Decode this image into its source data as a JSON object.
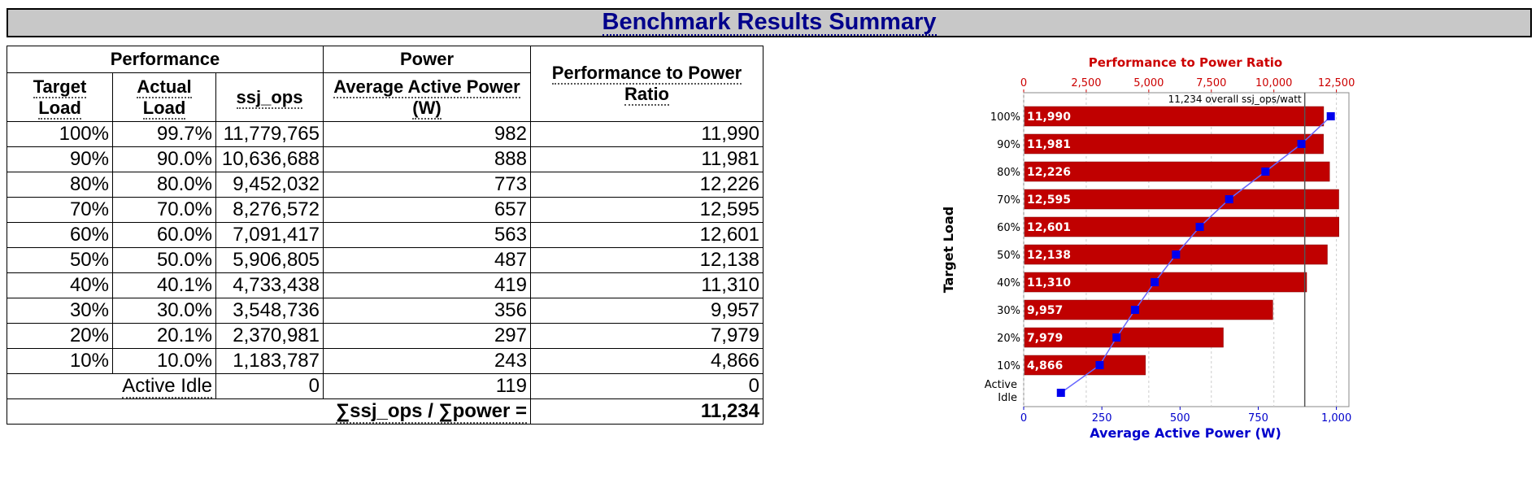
{
  "page_title": "Benchmark Results Summary",
  "table": {
    "group_headers": {
      "performance": "Performance",
      "power": "Power",
      "ratio": "Performance to Power Ratio"
    },
    "col_headers": {
      "target_load": "Target Load",
      "actual_load": "Actual Load",
      "ssj_ops": "ssj_ops",
      "avg_power": "Average Active Power (W)"
    },
    "rows": [
      {
        "target": "100%",
        "actual": "99.7%",
        "ssj_ops": "11,779,765",
        "power": "982",
        "ratio": "11,990"
      },
      {
        "target": "90%",
        "actual": "90.0%",
        "ssj_ops": "10,636,688",
        "power": "888",
        "ratio": "11,981"
      },
      {
        "target": "80%",
        "actual": "80.0%",
        "ssj_ops": "9,452,032",
        "power": "773",
        "ratio": "12,226"
      },
      {
        "target": "70%",
        "actual": "70.0%",
        "ssj_ops": "8,276,572",
        "power": "657",
        "ratio": "12,595"
      },
      {
        "target": "60%",
        "actual": "60.0%",
        "ssj_ops": "7,091,417",
        "power": "563",
        "ratio": "12,601"
      },
      {
        "target": "50%",
        "actual": "50.0%",
        "ssj_ops": "5,906,805",
        "power": "487",
        "ratio": "12,138"
      },
      {
        "target": "40%",
        "actual": "40.1%",
        "ssj_ops": "4,733,438",
        "power": "419",
        "ratio": "11,310"
      },
      {
        "target": "30%",
        "actual": "30.0%",
        "ssj_ops": "3,548,736",
        "power": "356",
        "ratio": "9,957"
      },
      {
        "target": "20%",
        "actual": "20.1%",
        "ssj_ops": "2,370,981",
        "power": "297",
        "ratio": "7,979"
      },
      {
        "target": "10%",
        "actual": "10.0%",
        "ssj_ops": "1,183,787",
        "power": "243",
        "ratio": "4,866"
      }
    ],
    "idle_row": {
      "label": "Active Idle",
      "ssj_ops": "0",
      "power": "119",
      "ratio": "0"
    },
    "summary": {
      "label": "∑ssj_ops / ∑power =",
      "value": "11,234"
    }
  },
  "chart_data": {
    "type": "bar",
    "title": "Performance to Power Ratio",
    "xlabel": "Average Active Power (W)",
    "ylabel": "Target Load",
    "categories": [
      "100%",
      "90%",
      "80%",
      "70%",
      "60%",
      "50%",
      "40%",
      "30%",
      "20%",
      "10%",
      "Active Idle"
    ],
    "ratio_values": [
      11990,
      11981,
      12226,
      12595,
      12601,
      12138,
      11310,
      9957,
      7979,
      4866,
      null
    ],
    "ratio_labels": [
      "11,990",
      "11,981",
      "12,226",
      "12,595",
      "12,601",
      "12,138",
      "11,310",
      "9,957",
      "7,979",
      "4,866",
      ""
    ],
    "power_values": [
      982,
      888,
      773,
      657,
      563,
      487,
      419,
      356,
      297,
      243,
      119
    ],
    "ratio_axis": {
      "range": [
        0,
        13000
      ],
      "ticks": [
        0,
        2500,
        5000,
        7500,
        10000,
        12500
      ],
      "tick_labels": [
        "0",
        "2,500",
        "5,000",
        "7,500",
        "10,000",
        "12,500"
      ]
    },
    "power_axis": {
      "range": [
        0,
        1040
      ],
      "ticks": [
        0,
        250,
        500,
        750,
        1000
      ],
      "tick_labels": [
        "0",
        "250",
        "500",
        "750",
        "1,000"
      ]
    },
    "overall": {
      "value": 11234,
      "label": "11,234 overall ssj_ops/watt"
    },
    "colors": {
      "bar": "#c00000",
      "bar_edge": "#800000",
      "line": "#6666ff",
      "marker": "#0000ee",
      "ratio_axis": "#cc0000",
      "power_axis": "#0000cc",
      "grid": "#cccccc"
    }
  }
}
